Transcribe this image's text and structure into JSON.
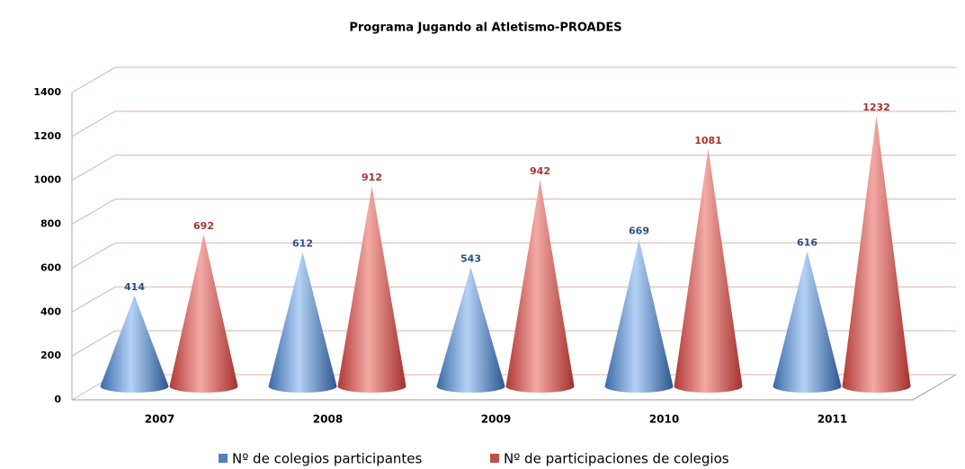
{
  "chart_data": {
    "type": "bar",
    "title": "Programa Jugando al Atletismo-PROADES",
    "categories": [
      "2007",
      "2008",
      "2009",
      "2010",
      "2011"
    ],
    "series": [
      {
        "name": "Nº de colegios participantes",
        "color": "#4f81bd",
        "values": [
          414,
          612,
          543,
          669,
          616
        ]
      },
      {
        "name": "Nº de participaciones de colegios",
        "color": "#c0504d",
        "values": [
          692,
          912,
          942,
          1081,
          1232
        ]
      }
    ],
    "ylim": [
      0,
      1400
    ],
    "yticks": [
      0,
      200,
      400,
      600,
      800,
      1000,
      1200,
      1400
    ],
    "grid": true,
    "legend": "bottom"
  }
}
